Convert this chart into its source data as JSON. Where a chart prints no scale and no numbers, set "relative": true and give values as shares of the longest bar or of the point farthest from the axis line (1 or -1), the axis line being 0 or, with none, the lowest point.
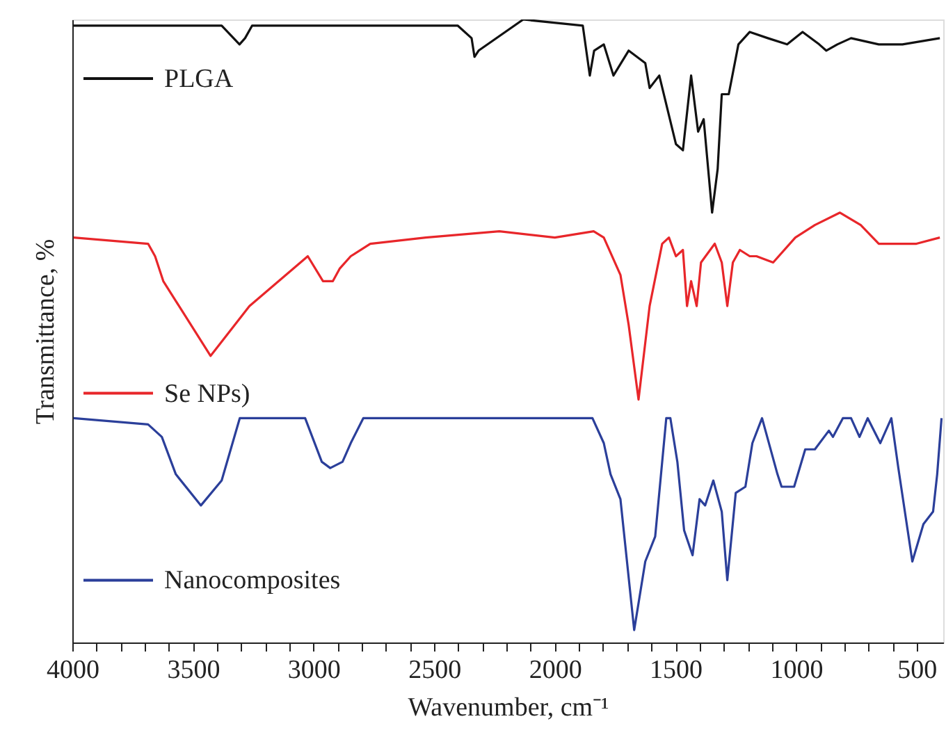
{
  "chart_data": {
    "type": "line",
    "relative": true,
    "legend": "left",
    "xlabel": "Wavenumber, cm⁻¹",
    "ylabel": "Transmittance, %",
    "xlim": [
      4000,
      390
    ],
    "xticks": [
      4000,
      {
        "value": 3900,
        "label": null
      },
      {
        "value": 3800,
        "label": null
      },
      {
        "value": 3700,
        "label": null
      },
      {
        "value": 3600,
        "label": null
      },
      3500,
      {
        "value": 3400,
        "label": null
      },
      {
        "value": 3300,
        "label": null
      },
      {
        "value": 3200,
        "label": null
      },
      {
        "value": 3100,
        "label": null
      },
      3000,
      {
        "value": 2900,
        "label": null
      },
      {
        "value": 2800,
        "label": null
      },
      {
        "value": 2700,
        "label": null
      },
      {
        "value": 2600,
        "label": null
      },
      2500,
      {
        "value": 2400,
        "label": null
      },
      {
        "value": 2300,
        "label": null
      },
      {
        "value": 2200,
        "label": null
      },
      {
        "value": 2100,
        "label": null
      },
      2000,
      {
        "value": 1900,
        "label": null
      },
      {
        "value": 1800,
        "label": null
      },
      {
        "value": 1700,
        "label": null
      },
      {
        "value": 1600,
        "label": null
      },
      1500,
      {
        "value": 1400,
        "label": null
      },
      {
        "value": 1300,
        "label": null
      },
      {
        "value": 1200,
        "label": null
      },
      {
        "value": 1100,
        "label": null
      },
      1000,
      {
        "value": 900,
        "label": null
      },
      {
        "value": 800,
        "label": null
      },
      {
        "value": 700,
        "label": null
      },
      {
        "value": 600,
        "label": null
      },
      500
    ],
    "series": [
      {
        "name": "PLGA",
        "color": "#111111",
        "x": [
          3995,
          3727,
          3497,
          3381,
          3307,
          3284,
          3255,
          2863,
          2748,
          2402,
          2345,
          2333,
          2316,
          2131,
          1884,
          1855,
          1837,
          1797,
          1757,
          1694,
          1625,
          1607,
          1567,
          1498,
          1469,
          1435,
          1406,
          1383,
          1348,
          1325,
          1308,
          1279,
          1239,
          1192,
          1117,
          1037,
          973,
          904,
          875,
          829,
          772,
          657,
          559,
          404
        ],
        "values": [
          0.99,
          0.99,
          0.99,
          0.99,
          0.96,
          0.97,
          0.99,
          0.99,
          0.99,
          0.99,
          0.97,
          0.94,
          0.95,
          1.0,
          0.99,
          0.91,
          0.95,
          0.96,
          0.91,
          0.95,
          0.93,
          0.89,
          0.91,
          0.8,
          0.79,
          0.91,
          0.82,
          0.84,
          0.69,
          0.76,
          0.88,
          0.88,
          0.96,
          0.98,
          0.97,
          0.96,
          0.98,
          0.96,
          0.95,
          0.96,
          0.97,
          0.96,
          0.96,
          0.97
        ]
      },
      {
        "name": "Se NPs)",
        "color": "#e8262a",
        "x": [
          3995,
          3686,
          3657,
          3623,
          3427,
          3266,
          3024,
          2961,
          2920,
          2892,
          2846,
          2765,
          2535,
          2230,
          2000,
          1839,
          1797,
          1728,
          1694,
          1653,
          1607,
          1555,
          1527,
          1498,
          1469,
          1452,
          1435,
          1412,
          1394,
          1337,
          1308,
          1285,
          1262,
          1233,
          1192,
          1164,
          1095,
          1003,
          922,
          818,
          732,
          657,
          576,
          501,
          404
        ],
        "values": [
          0.65,
          0.64,
          0.62,
          0.58,
          0.46,
          0.54,
          0.62,
          0.58,
          0.58,
          0.6,
          0.62,
          0.64,
          0.65,
          0.66,
          0.65,
          0.66,
          0.65,
          0.59,
          0.51,
          0.39,
          0.54,
          0.64,
          0.65,
          0.62,
          0.63,
          0.54,
          0.58,
          0.54,
          0.61,
          0.64,
          0.61,
          0.54,
          0.61,
          0.63,
          0.62,
          0.62,
          0.61,
          0.65,
          0.67,
          0.69,
          0.67,
          0.64,
          0.64,
          0.64,
          0.65
        ]
      },
      {
        "name": "Nanocomposites",
        "color": "#2b3f9a",
        "x": [
          3995,
          3686,
          3629,
          3571,
          3467,
          3381,
          3306,
          3035,
          2966,
          2931,
          2880,
          2846,
          2794,
          2230,
          1844,
          1797,
          1769,
          1728,
          1671,
          1625,
          1584,
          1538,
          1521,
          1492,
          1464,
          1429,
          1400,
          1377,
          1343,
          1308,
          1285,
          1250,
          1210,
          1181,
          1141,
          1077,
          1060,
          1008,
          962,
          922,
          864,
          847,
          806,
          772,
          737,
          703,
          651,
          605,
          576,
          518,
          472,
          432,
          415,
          397
        ],
        "values": [
          0.36,
          0.35,
          0.33,
          0.27,
          0.22,
          0.26,
          0.36,
          0.36,
          0.29,
          0.28,
          0.29,
          0.32,
          0.36,
          0.36,
          0.36,
          0.32,
          0.27,
          0.23,
          0.02,
          0.13,
          0.17,
          0.36,
          0.36,
          0.29,
          0.18,
          0.14,
          0.23,
          0.22,
          0.26,
          0.21,
          0.1,
          0.24,
          0.25,
          0.32,
          0.36,
          0.27,
          0.25,
          0.25,
          0.31,
          0.31,
          0.34,
          0.33,
          0.36,
          0.36,
          0.33,
          0.36,
          0.32,
          0.36,
          0.28,
          0.13,
          0.19,
          0.21,
          0.27,
          0.36
        ]
      }
    ]
  }
}
